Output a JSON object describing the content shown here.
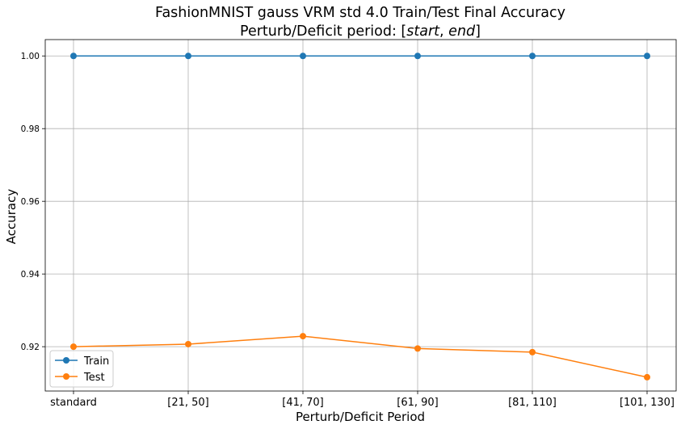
{
  "chart_data": {
    "type": "line",
    "title_line1": "FashionMNIST gauss VRM std 4.0 Train/Test Final Accuracy",
    "title_line2_prefix": "Perturb/Deficit period: [",
    "title_line2_start": "start",
    "title_line2_sep": ", ",
    "title_line2_end": "end",
    "title_line2_suffix": "]",
    "xlabel": "Perturb/Deficit Period",
    "ylabel": "Accuracy",
    "categories": [
      "standard",
      "[21, 50]",
      "[41, 70]",
      "[61, 90]",
      "[81, 110]",
      "[101, 130]"
    ],
    "yticks": [
      "0.92",
      "0.94",
      "0.96",
      "0.98",
      "1.00"
    ],
    "ytick_values": [
      0.92,
      0.94,
      0.96,
      0.98,
      1.0
    ],
    "ylim": [
      0.9078,
      1.0045
    ],
    "grid": true,
    "legend_position": "lower-left",
    "series": [
      {
        "name": "Train",
        "color": "#1f77b4",
        "values": [
          1.0,
          1.0,
          1.0,
          1.0,
          1.0,
          1.0
        ]
      },
      {
        "name": "Test",
        "color": "#ff7f0e",
        "values": [
          0.92,
          0.9207,
          0.9229,
          0.9195,
          0.9185,
          0.9116
        ]
      }
    ]
  }
}
